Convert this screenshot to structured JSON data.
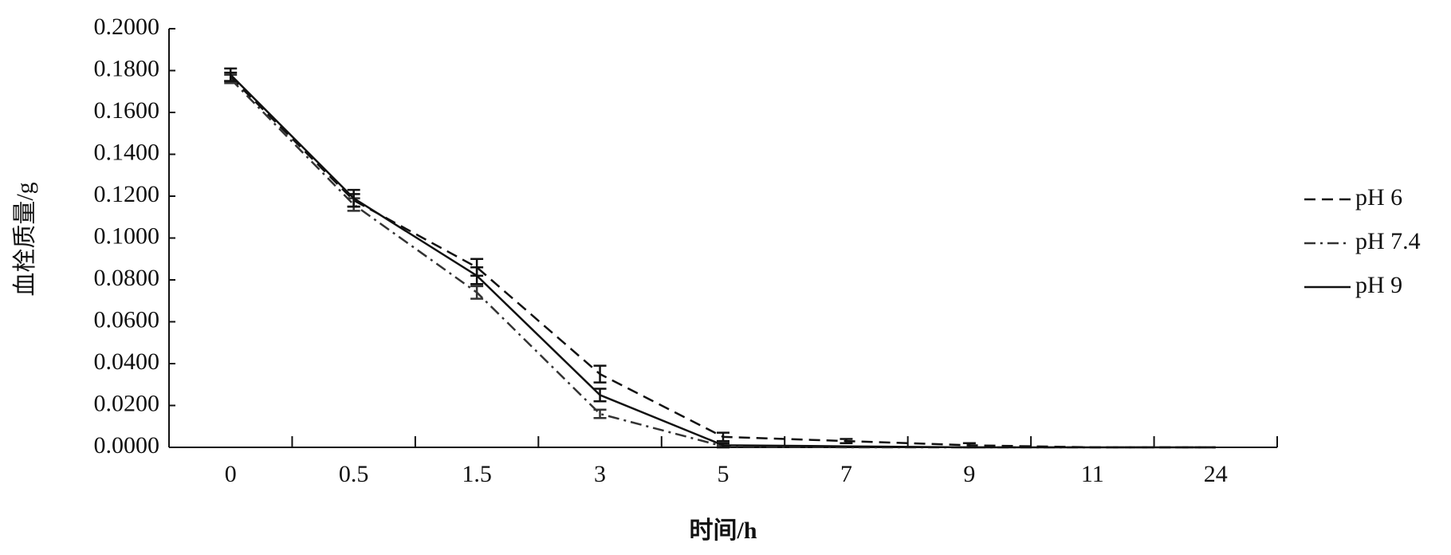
{
  "chart_data": {
    "type": "line",
    "x_label": "时间/h",
    "y_label": "血栓质量/g",
    "categories": [
      "0",
      "0.5",
      "1.5",
      "3",
      "5",
      "7",
      "9",
      "11",
      "24"
    ],
    "ylim": [
      0,
      0.2
    ],
    "yticks": [
      {
        "value": 0,
        "label": "0.0000"
      },
      {
        "value": 0.02,
        "label": "0.0200"
      },
      {
        "value": 0.04,
        "label": "0.0400"
      },
      {
        "value": 0.06,
        "label": "0.0600"
      },
      {
        "value": 0.08,
        "label": "0.0800"
      },
      {
        "value": 0.1,
        "label": "0.1000"
      },
      {
        "value": 0.12,
        "label": "0.1200"
      },
      {
        "value": 0.14,
        "label": "0.1400"
      },
      {
        "value": 0.16,
        "label": "0.1600"
      },
      {
        "value": 0.18,
        "label": "0.1800"
      },
      {
        "value": 0.2,
        "label": "0.2000"
      }
    ],
    "legend": "right",
    "series": [
      {
        "name": "pH 6",
        "color": "#111111",
        "dash": "dashed",
        "values": [
          0.177,
          0.118,
          0.086,
          0.035,
          0.005,
          0.003,
          0.001,
          0,
          0
        ],
        "errors": [
          0.002,
          0.003,
          0.004,
          0.004,
          0.002,
          0.001,
          0.001,
          0,
          0
        ]
      },
      {
        "name": "pH 7.4",
        "color": "#333333",
        "dash": "dashdot",
        "values": [
          0.176,
          0.116,
          0.074,
          0.016,
          0.0005,
          0,
          0,
          0,
          0
        ],
        "errors": [
          0.002,
          0.003,
          0.003,
          0.002,
          0.0005,
          0,
          0,
          0,
          0
        ]
      },
      {
        "name": "pH 9",
        "color": "#111111",
        "dash": "solid",
        "values": [
          0.178,
          0.119,
          0.082,
          0.025,
          0.001,
          0.0005,
          0,
          0,
          0
        ],
        "errors": [
          0.003,
          0.004,
          0.004,
          0.003,
          0.001,
          0,
          0,
          0,
          0
        ]
      }
    ]
  }
}
